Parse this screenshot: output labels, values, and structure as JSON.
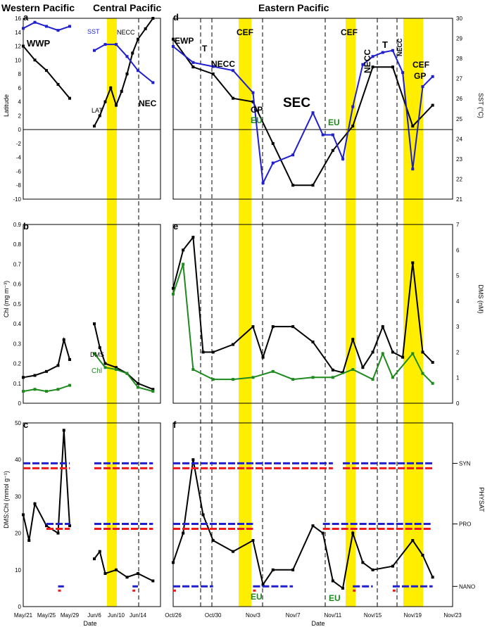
{
  "colors": {
    "black": "#000000",
    "blue": "#1f1fd0",
    "green": "#1e8a1e",
    "red": "#f01818",
    "yellow": "#ffee00"
  },
  "region_titles": {
    "western": "Western Pacific",
    "central": "Central Pacific",
    "eastern": "Eastern Pacific"
  },
  "x_axis": {
    "title": "Date",
    "ticks_west": [
      "May/21",
      "May/25",
      "May/29",
      "Jun/6",
      "Jun/10",
      "Jun/14"
    ],
    "ticks_east": [
      "Oct/26",
      "Oct/30",
      "Nov/3",
      "Nov/7",
      "Nov/11",
      "Nov/15",
      "Nov/19",
      "Nov/23"
    ]
  },
  "axes": {
    "lat": {
      "label": "Latitude",
      "ticks": [
        "16",
        "14",
        "12",
        "10",
        "8",
        "6",
        "4",
        "2",
        "0",
        "-2",
        "-4",
        "-6",
        "-8",
        "-10"
      ]
    },
    "sst": {
      "label": "SST (°C)",
      "ticks": [
        "30",
        "29",
        "28",
        "27",
        "26",
        "25",
        "24",
        "23",
        "22",
        "21"
      ]
    },
    "chl": {
      "label": "Chl (mg m⁻³)",
      "ticks": [
        "0.9",
        "0.8",
        "0.7",
        "0.6",
        "0.5",
        "0.4",
        "0.3",
        "0.2",
        "0.1",
        "0"
      ]
    },
    "dms": {
      "label": "DMS (nM)",
      "ticks": [
        "7",
        "6",
        "5",
        "4",
        "3",
        "2",
        "1",
        "0"
      ]
    },
    "ratio": {
      "label": "DMS:Chl (mmol g⁻¹)",
      "ticks": [
        "50",
        "40",
        "30",
        "20",
        "10",
        "0"
      ]
    },
    "physat": {
      "label": "PHYSAT",
      "classes": [
        "SYN",
        "PRO",
        "NANO"
      ]
    }
  },
  "panels": {
    "a": {
      "letter": "a",
      "labels": {
        "wwp": "WWP",
        "sst": "SST",
        "lat": "LAT",
        "necc": "NECC",
        "nec": "NEC"
      }
    },
    "b": {
      "letter": "b",
      "labels": {
        "dms": "DMS",
        "chl": "Chl"
      }
    },
    "c": {
      "letter": "c"
    },
    "d": {
      "letter": "d",
      "labels": {
        "ewp": "EWP",
        "t1": "T",
        "necc1": "NECC",
        "cef1": "CEF",
        "gp1": "GP",
        "eu1": "EU",
        "sec": "SEC",
        "eu2": "EU",
        "cef2": "CEF",
        "necc2": "NECC",
        "t2": "T",
        "necc3": "NECC",
        "cef3": "CEF",
        "gp2": "GP"
      }
    },
    "e": {
      "letter": "e"
    },
    "f": {
      "letter": "f",
      "labels": {
        "eu1": "EU",
        "eu2": "EU"
      }
    }
  },
  "chart_data": [
    {
      "panel": "a",
      "type": "line",
      "region": "Western/Central Pacific",
      "ylabel": "Latitude",
      "ylim": [
        -10,
        16
      ],
      "y2label": "SST (°C)",
      "y2lim": [
        21,
        30
      ],
      "series": [
        {
          "name": "LAT",
          "axis": "left",
          "x": [
            "May/21",
            "May/23",
            "May/25",
            "May/27",
            "May/29",
            "Jun/6",
            "Jun/7",
            "Jun/8",
            "Jun/9",
            "Jun/10",
            "Jun/11",
            "Jun/12",
            "Jun/13",
            "Jun/14",
            "Jun/15",
            "Jun/16"
          ],
          "y": [
            12,
            10,
            8.5,
            6.5,
            4.5,
            0.5,
            2,
            4,
            6,
            3.5,
            5.5,
            8,
            11,
            13,
            14.5,
            16
          ]
        },
        {
          "name": "SST",
          "axis": "right",
          "x": [
            "May/21",
            "May/23",
            "May/25",
            "May/27",
            "May/29",
            "Jun/6",
            "Jun/8",
            "Jun/10",
            "Jun/12",
            "Jun/14",
            "Jun/16"
          ],
          "y": [
            29.5,
            29.8,
            29.6,
            29.4,
            29.6,
            28.4,
            28.7,
            28.7,
            28.1,
            27.4,
            26.8
          ]
        }
      ]
    },
    {
      "panel": "d",
      "type": "line",
      "region": "Eastern Pacific",
      "ylabel": "Latitude",
      "ylim": [
        -10,
        16
      ],
      "y2label": "SST (°C)",
      "y2lim": [
        21,
        30
      ],
      "series": [
        {
          "name": "LAT",
          "axis": "left",
          "x": [
            "Oct/26",
            "Oct/28",
            "Oct/30",
            "Nov/1",
            "Nov/3",
            "Nov/5",
            "Nov/7",
            "Nov/9",
            "Nov/11",
            "Nov/13",
            "Nov/15",
            "Nov/17",
            "Nov/19",
            "Nov/21"
          ],
          "y": [
            13,
            9,
            8,
            4.5,
            4,
            -2,
            -8,
            -8,
            -3,
            0.5,
            9,
            9,
            0.5,
            3.5
          ]
        },
        {
          "name": "SST",
          "axis": "right",
          "x": [
            "Oct/26",
            "Oct/28",
            "Oct/30",
            "Nov/1",
            "Nov/3",
            "Nov/4",
            "Nov/5",
            "Nov/7",
            "Nov/9",
            "Nov/10",
            "Nov/11",
            "Nov/12",
            "Nov/13",
            "Nov/14",
            "Nov/15",
            "Nov/16",
            "Nov/17",
            "Nov/18",
            "Nov/19",
            "Nov/20",
            "Nov/21"
          ],
          "y": [
            28.6,
            27.8,
            27.6,
            27.4,
            26.3,
            21.8,
            22.8,
            23.2,
            25.3,
            24.2,
            24.2,
            23.0,
            25.6,
            27.7,
            28.1,
            28.3,
            28.4,
            27.3,
            22.5,
            26.6,
            27.1
          ]
        }
      ]
    },
    {
      "panel": "b",
      "type": "line",
      "region": "Western/Central Pacific",
      "ylabel": "Chl (mg m⁻³)",
      "ylim": [
        0,
        0.9
      ],
      "y2label": "DMS (nM)",
      "y2lim": [
        0,
        7
      ],
      "series": [
        {
          "name": "DMS",
          "axis": "left",
          "x": [
            "May/21",
            "May/23",
            "May/25",
            "May/27",
            "May/28",
            "May/29",
            "Jun/6",
            "Jun/7",
            "Jun/8",
            "Jun/10",
            "Jun/12",
            "Jun/14",
            "Jun/16"
          ],
          "y": [
            0.13,
            0.14,
            0.16,
            0.19,
            0.32,
            0.22,
            0.4,
            0.28,
            0.2,
            0.18,
            0.15,
            0.1,
            0.07
          ]
        },
        {
          "name": "Chl",
          "axis": "left",
          "x": [
            "May/21",
            "May/23",
            "May/25",
            "May/27",
            "May/29",
            "Jun/6",
            "Jun/8",
            "Jun/10",
            "Jun/12",
            "Jun/14",
            "Jun/16"
          ],
          "y": [
            0.06,
            0.07,
            0.06,
            0.07,
            0.09,
            0.25,
            0.18,
            0.17,
            0.15,
            0.08,
            0.06
          ]
        }
      ]
    },
    {
      "panel": "e",
      "type": "line",
      "region": "Eastern Pacific",
      "ylabel": "Chl (mg m⁻³)",
      "ylim": [
        0,
        0.9
      ],
      "y2label": "DMS (nM)",
      "y2lim": [
        0,
        7
      ],
      "series": [
        {
          "name": "DMS",
          "axis": "right",
          "x": [
            "Oct/26",
            "Oct/27",
            "Oct/28",
            "Oct/29",
            "Oct/30",
            "Nov/1",
            "Nov/3",
            "Nov/4",
            "Nov/5",
            "Nov/7",
            "Nov/9",
            "Nov/11",
            "Nov/12",
            "Nov/13",
            "Nov/14",
            "Nov/15",
            "Nov/16",
            "Nov/17",
            "Nov/18",
            "Nov/19",
            "Nov/20",
            "Nov/21"
          ],
          "y": [
            4.5,
            6.0,
            6.5,
            2.0,
            2.0,
            2.3,
            3.0,
            1.8,
            3.0,
            3.0,
            2.4,
            1.3,
            1.2,
            2.5,
            1.4,
            2.0,
            3.0,
            2.0,
            1.8,
            5.5,
            2.0,
            1.6
          ]
        },
        {
          "name": "Chl",
          "axis": "left",
          "x": [
            "Oct/26",
            "Oct/27",
            "Oct/28",
            "Oct/30",
            "Nov/1",
            "Nov/3",
            "Nov/5",
            "Nov/7",
            "Nov/9",
            "Nov/11",
            "Nov/13",
            "Nov/15",
            "Nov/16",
            "Nov/17",
            "Nov/19",
            "Nov/20",
            "Nov/21"
          ],
          "y": [
            0.55,
            0.7,
            0.17,
            0.12,
            0.12,
            0.13,
            0.16,
            0.12,
            0.13,
            0.13,
            0.17,
            0.12,
            0.25,
            0.13,
            0.25,
            0.15,
            0.1
          ]
        }
      ]
    },
    {
      "panel": "c",
      "type": "line",
      "region": "Western/Central Pacific",
      "ylabel": "DMS:Chl (mmol g⁻¹)",
      "ylim": [
        0,
        50
      ],
      "series": [
        {
          "name": "DMS:Chl",
          "x": [
            "May/21",
            "May/22",
            "May/23",
            "May/25",
            "May/27",
            "May/28",
            "May/29",
            "Jun/6",
            "Jun/7",
            "Jun/8",
            "Jun/10",
            "Jun/12",
            "Jun/14",
            "Jun/16"
          ],
          "y": [
            25,
            18,
            28,
            22,
            20,
            48,
            22,
            13,
            15,
            9,
            10,
            8,
            9,
            7
          ]
        }
      ],
      "physat": {
        "SYN": [
          [
            "May/21",
            "May/29"
          ],
          [
            "Jun/6",
            "Jun/16"
          ]
        ],
        "PRO": [
          [
            "May/25",
            "May/29"
          ],
          [
            "Jun/6",
            "Jun/16"
          ]
        ],
        "NANO": [
          [
            "May/27",
            "May/28"
          ],
          [
            "Jun/13",
            "Jun/14"
          ]
        ]
      }
    },
    {
      "panel": "f",
      "type": "line",
      "region": "Eastern Pacific",
      "ylabel": "DMS:Chl (mmol g⁻¹)",
      "ylim": [
        0,
        50
      ],
      "y2label": "PHYSAT",
      "series": [
        {
          "name": "DMS:Chl",
          "x": [
            "Oct/26",
            "Oct/27",
            "Oct/28",
            "Oct/29",
            "Oct/30",
            "Nov/1",
            "Nov/3",
            "Nov/4",
            "Nov/5",
            "Nov/7",
            "Nov/9",
            "Nov/10",
            "Nov/11",
            "Nov/12",
            "Nov/13",
            "Nov/14",
            "Nov/15",
            "Nov/17",
            "Nov/19",
            "Nov/20",
            "Nov/21"
          ],
          "y": [
            12,
            20,
            40,
            25,
            18,
            15,
            18,
            6,
            10,
            10,
            22,
            20,
            7,
            5,
            20,
            12,
            10,
            11,
            18,
            14,
            8
          ]
        }
      ],
      "physat": {
        "SYN": [
          [
            "Oct/26",
            "Nov/11"
          ],
          [
            "Nov/12",
            "Nov/21"
          ]
        ],
        "PRO": [
          [
            "Oct/26",
            "Nov/3"
          ],
          [
            "Nov/10",
            "Nov/21"
          ]
        ],
        "NANO": [
          [
            "Oct/26",
            "Oct/30"
          ],
          [
            "Nov/3",
            "Nov/7"
          ],
          [
            "Nov/13",
            "Nov/15"
          ],
          [
            "Nov/17",
            "Nov/21"
          ]
        ]
      }
    }
  ]
}
